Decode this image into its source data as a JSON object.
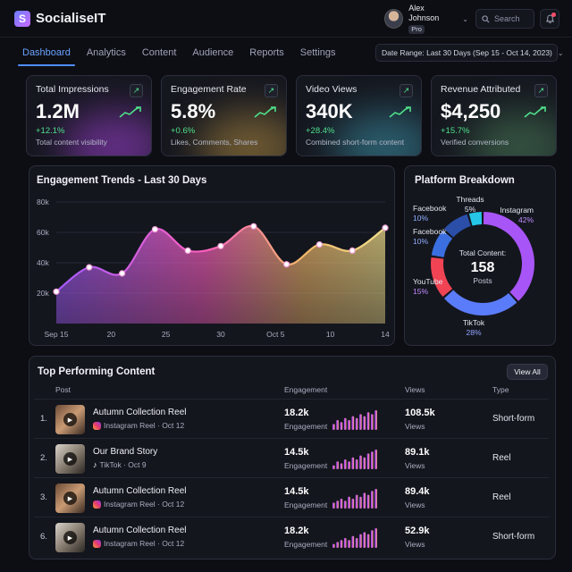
{
  "app": {
    "name": "SocialiseIT",
    "logo_glyph": "S"
  },
  "user": {
    "name": "Alex Johnson",
    "badge": "Pro"
  },
  "search": {
    "placeholder": "Search"
  },
  "nav": {
    "tabs": [
      {
        "label": "Dashboard",
        "active": true
      },
      {
        "label": "Analytics"
      },
      {
        "label": "Content"
      },
      {
        "label": "Audience"
      },
      {
        "label": "Reports"
      },
      {
        "label": "Settings"
      }
    ],
    "date_range": "Date Range: Last 30 Days (Sep 15 - Oct 14, 2023)"
  },
  "kpis": [
    {
      "title": "Total Impressions",
      "value": "1.2M",
      "delta": "+12.1%",
      "sub": "Total content visibility",
      "glow": "#c24cff"
    },
    {
      "title": "Engagement Rate",
      "value": "5.8%",
      "delta": "+0.6%",
      "sub": "Likes, Comments, Shares",
      "glow": "#d6a84a"
    },
    {
      "title": "Video Views",
      "value": "340K",
      "delta": "+28.4%",
      "sub": "Combined short-form content",
      "glow": "#46b0c8"
    },
    {
      "title": "Revenue Attributed",
      "value": "$4,250",
      "delta": "+15.7%",
      "sub": "Verified conversions",
      "glow": "#5a9a6a"
    }
  ],
  "trends": {
    "title": "Engagement Trends - Last 30 Days",
    "chart_data": {
      "type": "area",
      "title": "Engagement Trends - Last 30 Days",
      "x_ticks": [
        "Sep 15",
        "20",
        "25",
        "30",
        "Oct 5",
        "10",
        "14"
      ],
      "y_ticks": [
        "20k",
        "40k",
        "60k",
        "80k"
      ],
      "ylim": [
        0,
        80000
      ],
      "grid": true,
      "points": [
        {
          "x": "Sep 15",
          "y": 21000
        },
        {
          "x": "Sep 18",
          "y": 37000
        },
        {
          "x": "Sep 21",
          "y": 33000
        },
        {
          "x": "Sep 24",
          "y": 62000
        },
        {
          "x": "Sep 27",
          "y": 48000
        },
        {
          "x": "Sep 30",
          "y": 51000
        },
        {
          "x": "Oct 3",
          "y": 64000
        },
        {
          "x": "Oct 6",
          "y": 39000
        },
        {
          "x": "Oct 9",
          "y": 52000
        },
        {
          "x": "Oct 12",
          "y": 48000
        },
        {
          "x": "Oct 14",
          "y": 63000
        }
      ]
    }
  },
  "platform": {
    "title": "Platform Breakdown",
    "center_label": "Total Content:",
    "center_value": "158",
    "center_unit": "Posts",
    "chart_data": {
      "type": "pie",
      "slices": [
        {
          "label": "Instagram",
          "value": 42,
          "pct": "42%",
          "color": "#a855f7"
        },
        {
          "label": "TikTok",
          "value": 28,
          "pct": "28%",
          "color": "#5b7cfa"
        },
        {
          "label": "YouTube",
          "value": 15,
          "pct": "15%",
          "color": "#f04454"
        },
        {
          "label": "Facebook",
          "value": 10,
          "pct": "10%",
          "color": "#3b6fe0"
        },
        {
          "label": "Facebook",
          "value": 10,
          "pct": "10%",
          "color": "#2b4fa8"
        },
        {
          "label": "Threads",
          "value": 5,
          "pct": "5%",
          "color": "#25c6e8"
        }
      ]
    }
  },
  "top": {
    "title": "Top Performing Content",
    "view_all": "View All",
    "headers": {
      "post": "Post",
      "engagement": "Engagement",
      "views": "Views",
      "type": "Type"
    },
    "rows": [
      {
        "rank": "1.",
        "title": "Autumn Collection Reel",
        "meta": "Instagram Reel · Oct 12",
        "platform": "instagram",
        "engagement": "18.2k",
        "engagement_label": "Engagement",
        "views": "108.5k",
        "views_label": "Views",
        "type": "Short-form",
        "thumb": "warm",
        "trend": [
          3,
          5,
          4,
          6,
          5,
          7,
          6,
          8,
          7,
          9,
          8,
          10
        ]
      },
      {
        "rank": "2.",
        "title": "Our Brand Story",
        "meta": "TikTok · Oct 9",
        "platform": "tiktok",
        "engagement": "14.5k",
        "engagement_label": "Engagement",
        "views": "89.1k",
        "views_label": "Views",
        "type": "Reel",
        "thumb": "light",
        "trend": [
          2,
          4,
          3,
          5,
          4,
          6,
          5,
          7,
          6,
          8,
          9,
          10
        ]
      },
      {
        "rank": "3.",
        "title": "Autumn Collection Reel",
        "meta": "Instagram Reel · Oct 12",
        "platform": "instagram",
        "engagement": "14.5k",
        "engagement_label": "Engagement",
        "views": "89.4k",
        "views_label": "Views",
        "type": "Reel",
        "thumb": "warm",
        "trend": [
          3,
          4,
          5,
          4,
          6,
          5,
          7,
          6,
          8,
          7,
          9,
          10
        ]
      },
      {
        "rank": "6.",
        "title": "Autumn Collection Reel",
        "meta": "Instagram Reel · Oct 12",
        "platform": "instagram",
        "engagement": "18.2k",
        "engagement_label": "Engagement",
        "views": "52.9k",
        "views_label": "Views",
        "type": "Short-form",
        "thumb": "light",
        "trend": [
          2,
          3,
          4,
          5,
          4,
          6,
          5,
          7,
          8,
          7,
          9,
          10
        ]
      }
    ]
  }
}
